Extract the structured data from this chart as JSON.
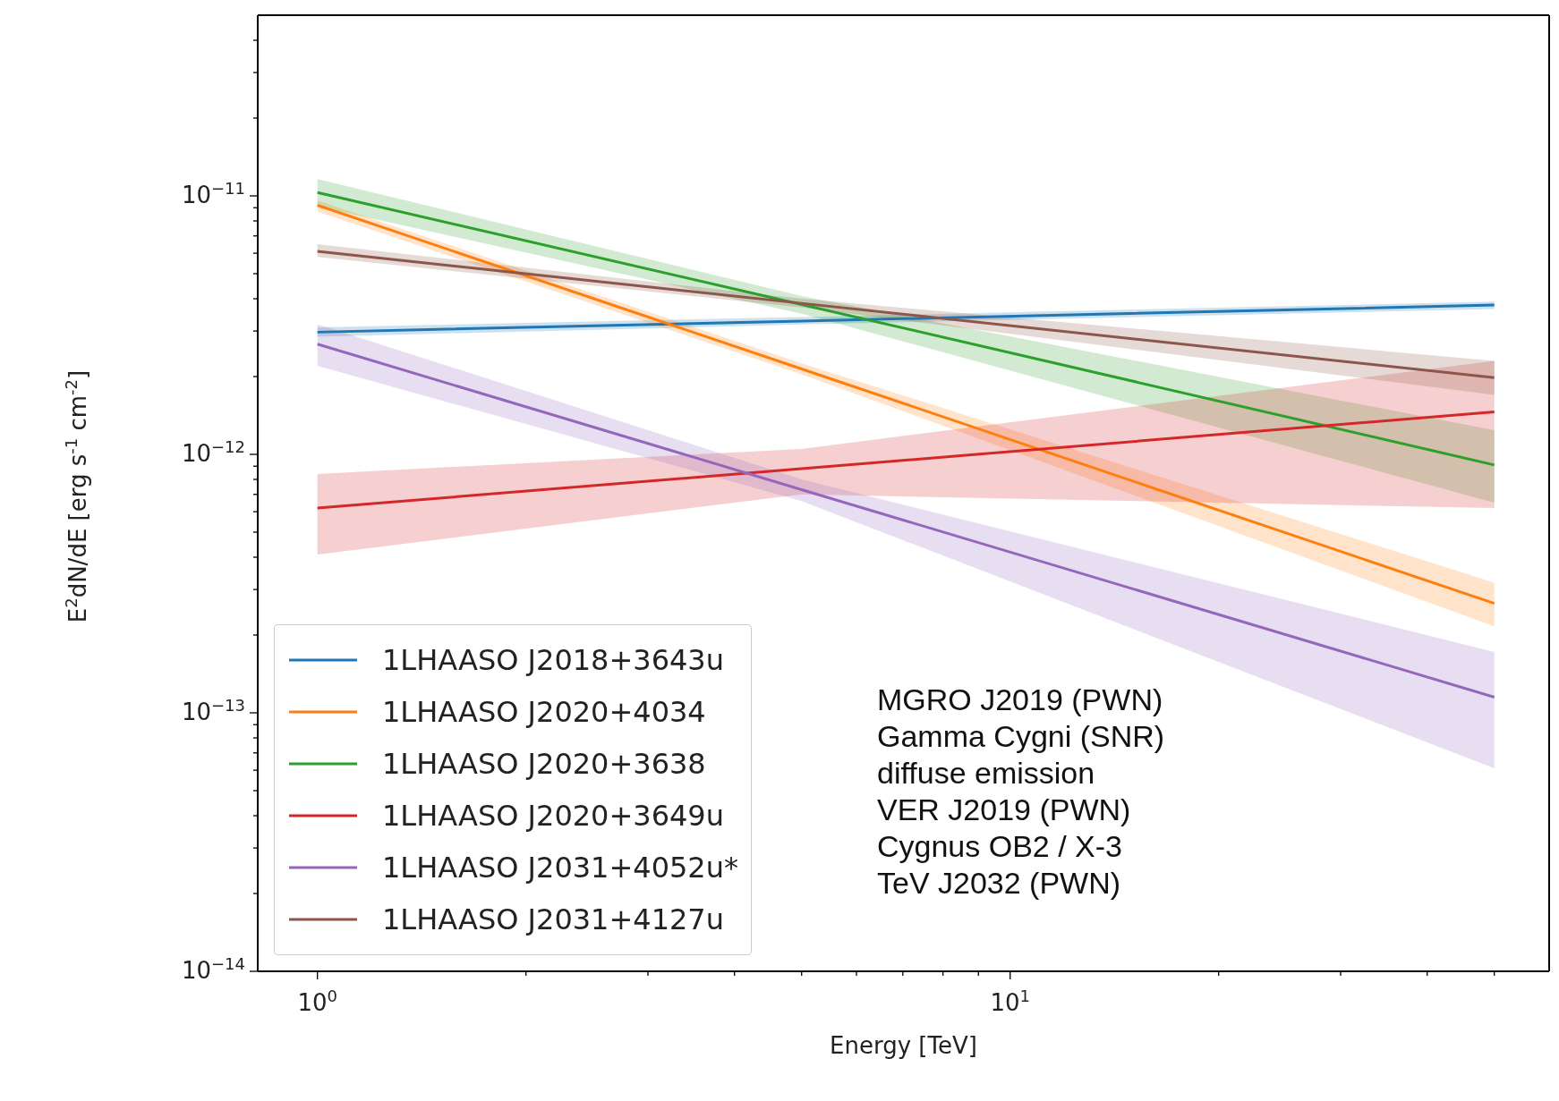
{
  "chart_data": {
    "type": "line",
    "xlabel": "Energy [TeV]",
    "ylabel": "E$^{2}$dN/dE [erg s$^{-1}$ cm$^{-2}$]",
    "log": "xy",
    "grid": false,
    "legend": "bottom left",
    "marker": "none",
    "line_style": "solid",
    "x": [
      1,
      5,
      50
    ],
    "xlim": [
      0.82,
      60
    ],
    "ylim": [
      1e-14,
      5e-11
    ],
    "xticks": [
      {
        "value": 1,
        "label": "10$^{0}$"
      },
      {
        "value": 2,
        "label": null
      },
      {
        "value": 3,
        "label": null
      },
      {
        "value": 4,
        "label": null
      },
      {
        "value": 5,
        "label": null
      },
      {
        "value": 6,
        "label": null
      },
      {
        "value": 7,
        "label": null
      },
      {
        "value": 8,
        "label": null
      },
      {
        "value": 9,
        "label": null
      },
      {
        "value": 10,
        "label": "10$^{1}$"
      },
      {
        "value": 20,
        "label": null
      },
      {
        "value": 30,
        "label": null
      },
      {
        "value": 40,
        "label": null
      },
      {
        "value": 50,
        "label": null
      }
    ],
    "yticks": [
      {
        "value": 1e-14,
        "label": "10$^{−14}$"
      },
      {
        "value": 2e-14,
        "label": null
      },
      {
        "value": 3e-14,
        "label": null
      },
      {
        "value": 4e-14,
        "label": null
      },
      {
        "value": 5e-14,
        "label": null
      },
      {
        "value": 6e-14,
        "label": null
      },
      {
        "value": 7e-14,
        "label": null
      },
      {
        "value": 8e-14,
        "label": null
      },
      {
        "value": 9e-14,
        "label": null
      },
      {
        "value": 1e-13,
        "label": "10$^{−13}$"
      },
      {
        "value": 2e-13,
        "label": null
      },
      {
        "value": 3e-13,
        "label": null
      },
      {
        "value": 4e-13,
        "label": null
      },
      {
        "value": 5e-13,
        "label": null
      },
      {
        "value": 6e-13,
        "label": null
      },
      {
        "value": 7e-13,
        "label": null
      },
      {
        "value": 8e-13,
        "label": null
      },
      {
        "value": 9e-13,
        "label": null
      },
      {
        "value": 1e-12,
        "label": "10$^{−12}$"
      },
      {
        "value": 2e-12,
        "label": null
      },
      {
        "value": 3e-12,
        "label": null
      },
      {
        "value": 4e-12,
        "label": null
      },
      {
        "value": 5e-12,
        "label": null
      },
      {
        "value": 6e-12,
        "label": null
      },
      {
        "value": 7e-12,
        "label": null
      },
      {
        "value": 8e-12,
        "label": null
      },
      {
        "value": 9e-12,
        "label": null
      },
      {
        "value": 1e-11,
        "label": "10$^{−11}$"
      },
      {
        "value": 2e-11,
        "label": null
      },
      {
        "value": 3e-11,
        "label": null
      },
      {
        "value": 4e-11,
        "label": null
      }
    ],
    "series": [
      {
        "name": "1LHAASO J2018+3643u",
        "color": "#1f77b4",
        "values": [
          2.97e-12,
          3.28e-12,
          3.78e-12
        ],
        "lower": [
          2.85e-12,
          3.18e-12,
          3.65e-12
        ],
        "upper": [
          3.1e-12,
          3.4e-12,
          3.9e-12
        ]
      },
      {
        "name": "1LHAASO J2020+4034",
        "color": "#ff7f0e",
        "values": [
          9.2e-12,
          2.14e-12,
          2.65e-13
        ],
        "lower": [
          8.7e-12,
          2.04e-12,
          2.16e-13
        ],
        "upper": [
          9.6e-12,
          2.25e-12,
          3.19e-13
        ]
      },
      {
        "name": "1LHAASO J2020+3638",
        "color": "#2ca02c",
        "values": [
          1.03e-11,
          3.8e-12,
          9.1e-13
        ],
        "lower": [
          9.1e-12,
          3.5e-12,
          6.5e-13
        ],
        "upper": [
          1.16e-11,
          4.1e-12,
          1.24e-12
        ]
      },
      {
        "name": "1LHAASO J2020+3649u",
        "color": "#d62728",
        "values": [
          6.2e-13,
          8.8e-13,
          1.46e-12
        ],
        "lower": [
          4.1e-13,
          7e-13,
          6.2e-13
        ],
        "upper": [
          8.4e-13,
          1.05e-12,
          2.3e-12
        ]
      },
      {
        "name": "1LHAASO J2031+4052u*",
        "color": "#9467bd",
        "values": [
          2.67e-12,
          7.3e-13,
          1.15e-13
        ],
        "lower": [
          2.2e-12,
          6.6e-13,
          6.1e-14
        ],
        "upper": [
          3.19e-12,
          8e-13,
          1.72e-13
        ]
      },
      {
        "name": "1LHAASO J2031+4127u",
        "color": "#8c564b",
        "values": [
          6.1e-12,
          3.84e-12,
          1.98e-12
        ],
        "lower": [
          5.8e-12,
          3.7e-12,
          1.7e-12
        ],
        "upper": [
          6.5e-12,
          4e-12,
          2.3e-12
        ]
      }
    ],
    "annotations": [
      "MGRO J2019 (PWN)",
      "Gamma Cygni (SNR)",
      "diffuse emission",
      "VER J2019 (PWN)",
      "Cygnus OB2 / X-3",
      "TeV J2032 (PWN)"
    ]
  }
}
